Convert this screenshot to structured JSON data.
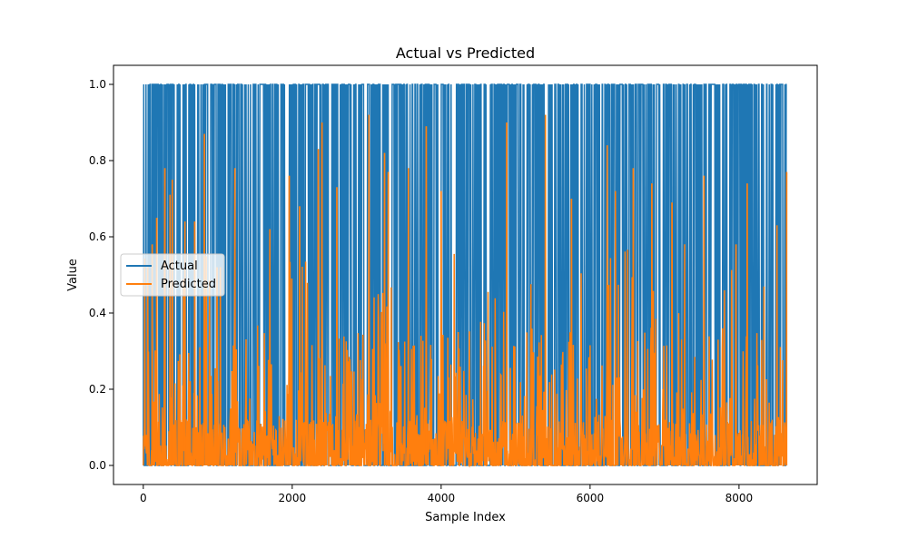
{
  "chart_data": {
    "type": "line",
    "title": "Actual vs Predicted",
    "xlabel": "Sample Index",
    "ylabel": "Value",
    "xlim": [
      -400,
      9050
    ],
    "ylim": [
      -0.05,
      1.05
    ],
    "x_ticks": [
      0,
      2000,
      4000,
      6000,
      8000
    ],
    "x_tick_labels": [
      "0",
      "2000",
      "4000",
      "6000",
      "8000"
    ],
    "y_ticks": [
      0.0,
      0.2,
      0.4,
      0.6,
      0.8,
      1.0
    ],
    "y_tick_labels": [
      "0.0",
      "0.2",
      "0.4",
      "0.6",
      "0.8",
      "1.0"
    ],
    "grid": false,
    "legend_position": "center-left",
    "series": [
      {
        "name": "Actual",
        "color": "#1f77b4",
        "x_range": [
          0,
          8640
        ],
        "value_levels": [
          0,
          1
        ],
        "description_values": "binary 0/1 labels over samples 0–8640"
      },
      {
        "name": "Predicted",
        "color": "#ff7f0e",
        "x_range": [
          0,
          8640
        ],
        "peaks": [
          {
            "x": 60,
            "y": 0.52
          },
          {
            "x": 120,
            "y": 0.58
          },
          {
            "x": 180,
            "y": 0.65
          },
          {
            "x": 290,
            "y": 0.78
          },
          {
            "x": 360,
            "y": 0.71
          },
          {
            "x": 390,
            "y": 0.75
          },
          {
            "x": 560,
            "y": 0.64
          },
          {
            "x": 690,
            "y": 0.64
          },
          {
            "x": 820,
            "y": 0.87
          },
          {
            "x": 990,
            "y": 0.52
          },
          {
            "x": 1230,
            "y": 0.78
          },
          {
            "x": 1700,
            "y": 0.62
          },
          {
            "x": 1960,
            "y": 0.76
          },
          {
            "x": 2100,
            "y": 0.68
          },
          {
            "x": 2350,
            "y": 0.83
          },
          {
            "x": 2400,
            "y": 0.9
          },
          {
            "x": 2600,
            "y": 0.73
          },
          {
            "x": 3030,
            "y": 0.92
          },
          {
            "x": 3240,
            "y": 0.82
          },
          {
            "x": 3290,
            "y": 0.77
          },
          {
            "x": 3560,
            "y": 0.78
          },
          {
            "x": 3800,
            "y": 0.89
          },
          {
            "x": 4000,
            "y": 0.72
          },
          {
            "x": 4880,
            "y": 0.9
          },
          {
            "x": 5400,
            "y": 0.92
          },
          {
            "x": 5750,
            "y": 0.7
          },
          {
            "x": 6230,
            "y": 0.84
          },
          {
            "x": 6340,
            "y": 0.72
          },
          {
            "x": 6580,
            "y": 0.78
          },
          {
            "x": 6830,
            "y": 0.74
          },
          {
            "x": 7100,
            "y": 0.69
          },
          {
            "x": 7530,
            "y": 0.76
          },
          {
            "x": 7960,
            "y": 0.58
          },
          {
            "x": 8110,
            "y": 0.74
          },
          {
            "x": 8510,
            "y": 0.63
          },
          {
            "x": 8640,
            "y": 0.77
          }
        ]
      }
    ]
  }
}
